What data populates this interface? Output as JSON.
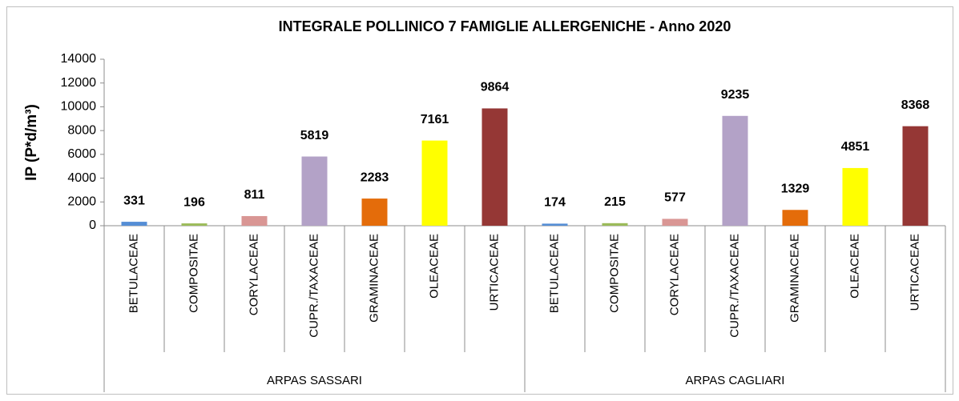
{
  "chart_data": {
    "type": "bar",
    "title": "INTEGRALE POLLINICO 7 FAMIGLIE ALLERGENICHE - Anno 2020",
    "y_label": "IP (P*d/m³)",
    "ylim": [
      0,
      14000
    ],
    "yticks": [
      0,
      2000,
      4000,
      6000,
      8000,
      10000,
      12000,
      14000
    ],
    "grid": false,
    "groups": [
      {
        "name": "ARPAS SASSARI",
        "label_color": "#1f497d",
        "categories": [
          "BETULACEAE",
          "COMPOSITAE",
          "CORYLACEAE",
          "CUPR./TAXACEAE",
          "GRAMINACEAE",
          "OLEACEAE",
          "URTICACEAE"
        ],
        "values": [
          331,
          196,
          811,
          5819,
          2283,
          7161,
          9864
        ],
        "colors": [
          "#558ed5",
          "#9bbb59",
          "#d99694",
          "#b3a2c7",
          "#e46c0a",
          "#ffff00",
          "#953735"
        ]
      },
      {
        "name": "ARPAS CAGLIARI",
        "label_color": "#00b050",
        "categories": [
          "BETULACEAE",
          "COMPOSITAE",
          "CORYLACEAE",
          "CUPR./TAXACEAE",
          "GRAMINACEAE",
          "OLEACEAE",
          "URTICACEAE"
        ],
        "values": [
          174,
          215,
          577,
          9235,
          1329,
          4851,
          8368
        ],
        "colors": [
          "#558ed5",
          "#9bbb59",
          "#d99694",
          "#b3a2c7",
          "#e46c0a",
          "#ffff00",
          "#953735"
        ]
      }
    ]
  }
}
